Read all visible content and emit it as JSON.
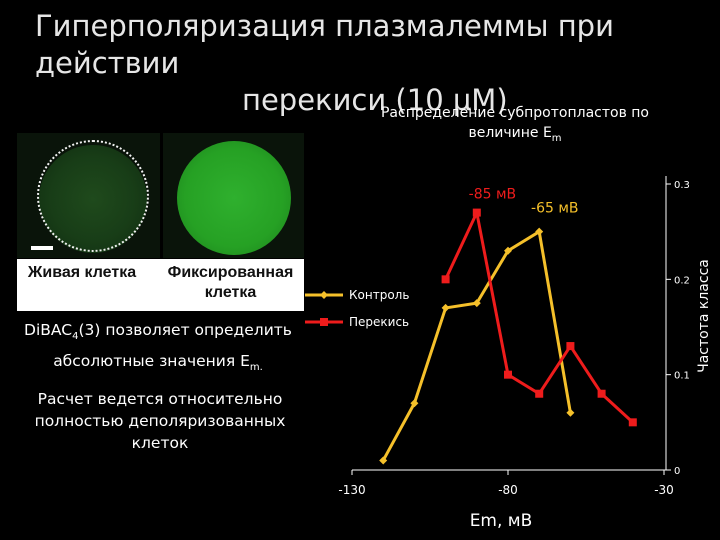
{
  "slide": {
    "title_line1": "Гиперполяризация плазмалеммы при действии",
    "title_line2": "перекиси (10 µМ)"
  },
  "images": {
    "live_caption": "Живая клетка",
    "fixed_caption": "Фиксированная клетка"
  },
  "notes": {
    "method_prefix": "DiBAC",
    "method_sub": "4",
    "method_suffix": "(3) позволяет определить абсолютные значения E",
    "method_em_sub": "m.",
    "calc": "Расчет ведется относительно полностью деполяризованных клеток"
  },
  "chart_data": {
    "type": "line",
    "title_main": "Распределение субпротопластов по величине E",
    "title_sub": "m",
    "xlabel": "Em, мВ",
    "ylabel": "Частота класса",
    "xlim": [
      -130,
      -30
    ],
    "ylim": [
      0,
      0.3
    ],
    "x_tick_labels": [
      "-130",
      "-80",
      "-30"
    ],
    "x_tick_values": [
      -130,
      -80,
      -30
    ],
    "y_tick_labels": [
      "0",
      "0.1",
      "0.2",
      "0.3"
    ],
    "y_tick_values": [
      0,
      0.1,
      0.2,
      0.3
    ],
    "series": [
      {
        "name": "Контроль",
        "color": "#f5c02a",
        "marker": "diamond",
        "points": [
          [
            -120,
            0.01
          ],
          [
            -110,
            0.07
          ],
          [
            -100,
            0.17
          ],
          [
            -90,
            0.175
          ],
          [
            -80,
            0.23
          ],
          [
            -70,
            0.25
          ],
          [
            -60,
            0.06
          ]
        ]
      },
      {
        "name": "Перекись",
        "color": "#ee1c1c",
        "marker": "square",
        "points": [
          [
            -100,
            0.2
          ],
          [
            -90,
            0.27
          ],
          [
            -80,
            0.1
          ],
          [
            -70,
            0.08
          ],
          [
            -60,
            0.13
          ],
          [
            -50,
            0.08
          ],
          [
            -40,
            0.05
          ]
        ]
      }
    ],
    "annotations": [
      {
        "text": "-85 мВ",
        "x": -85,
        "y": 0.285,
        "color": "#ee1c1c"
      },
      {
        "text": "-65 мВ",
        "x": -65,
        "y": 0.27,
        "color": "#f5c02a"
      }
    ],
    "legend_position": "center-left"
  }
}
